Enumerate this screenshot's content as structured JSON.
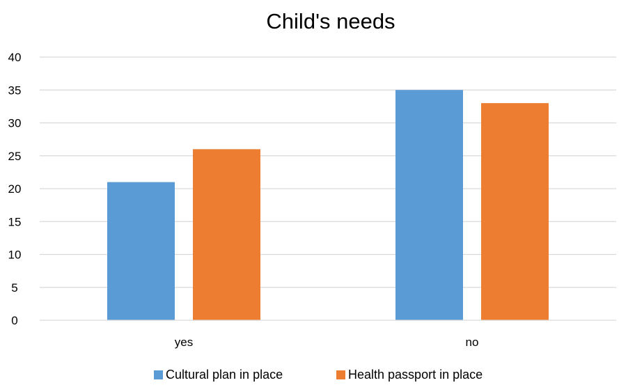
{
  "chart_data": {
    "type": "bar",
    "title": "Child's needs",
    "categories": [
      "yes",
      "no"
    ],
    "series": [
      {
        "name": "Cultural plan in place",
        "values": [
          21,
          35
        ],
        "color": "#5b9bd5"
      },
      {
        "name": "Health passport in place",
        "values": [
          26,
          33
        ],
        "color": "#ed7d31"
      }
    ],
    "ylim": [
      0,
      40
    ],
    "y_ticks": [
      0,
      5,
      10,
      15,
      20,
      25,
      30,
      35,
      40
    ],
    "grid": true,
    "legend_position": "bottom"
  }
}
